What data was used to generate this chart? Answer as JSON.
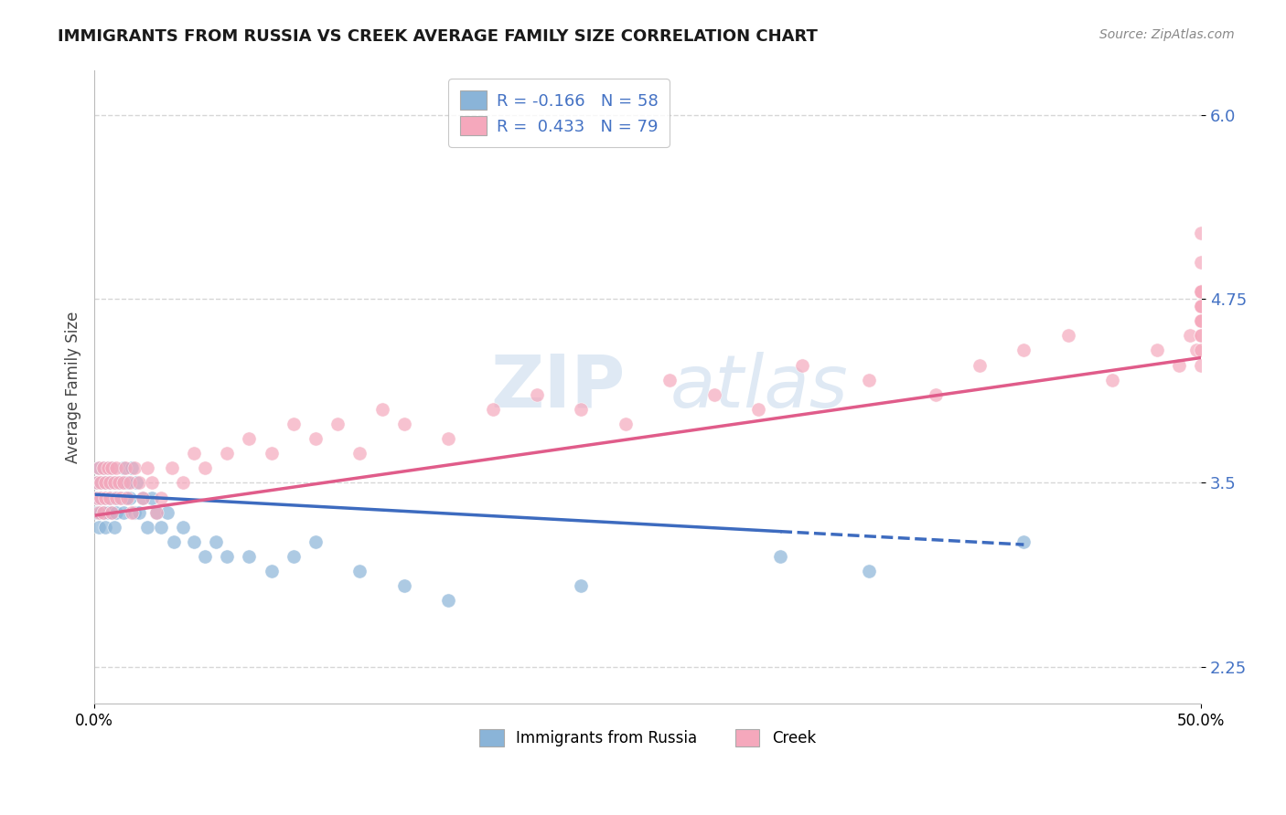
{
  "title": "IMMIGRANTS FROM RUSSIA VS CREEK AVERAGE FAMILY SIZE CORRELATION CHART",
  "source": "Source: ZipAtlas.com",
  "ylabel": "Average Family Size",
  "xlim": [
    0.0,
    0.5
  ],
  "ylim": [
    2.0,
    6.3
  ],
  "yticks": [
    2.25,
    3.5,
    4.75,
    6.0
  ],
  "xticks": [
    0.0,
    0.5
  ],
  "xticklabels": [
    "0.0%",
    "50.0%"
  ],
  "watermark_top": "ZIP",
  "watermark_bot": "atlas",
  "legend_line1": "R = -0.166   N = 58",
  "legend_line2": "R =  0.433   N = 79",
  "color_blue": "#8ab4d8",
  "color_pink": "#f5a8bc",
  "trend_blue": "#3d6bbf",
  "trend_pink": "#e05c8a",
  "tick_color": "#4472c4",
  "russia_x": [
    0.001,
    0.001,
    0.001,
    0.002,
    0.002,
    0.002,
    0.003,
    0.003,
    0.003,
    0.004,
    0.004,
    0.005,
    0.005,
    0.005,
    0.006,
    0.006,
    0.007,
    0.007,
    0.008,
    0.008,
    0.009,
    0.009,
    0.01,
    0.01,
    0.011,
    0.012,
    0.013,
    0.013,
    0.014,
    0.015,
    0.016,
    0.017,
    0.018,
    0.019,
    0.02,
    0.022,
    0.024,
    0.026,
    0.028,
    0.03,
    0.033,
    0.036,
    0.04,
    0.045,
    0.05,
    0.055,
    0.06,
    0.07,
    0.08,
    0.09,
    0.1,
    0.12,
    0.14,
    0.16,
    0.22,
    0.31,
    0.35,
    0.42
  ],
  "russia_y": [
    3.5,
    3.3,
    3.4,
    3.6,
    3.2,
    3.4,
    3.5,
    3.3,
    3.4,
    3.6,
    3.3,
    3.4,
    3.2,
    3.5,
    3.3,
    3.6,
    3.4,
    3.5,
    3.3,
    3.6,
    3.4,
    3.2,
    3.5,
    3.3,
    3.4,
    3.5,
    3.3,
    3.6,
    3.4,
    3.5,
    3.4,
    3.6,
    3.3,
    3.5,
    3.3,
    3.4,
    3.2,
    3.4,
    3.3,
    3.2,
    3.3,
    3.1,
    3.2,
    3.1,
    3.0,
    3.1,
    3.0,
    3.0,
    2.9,
    3.0,
    3.1,
    2.9,
    2.8,
    2.7,
    2.8,
    3.0,
    2.9,
    3.1
  ],
  "creek_x": [
    0.001,
    0.001,
    0.002,
    0.002,
    0.003,
    0.003,
    0.004,
    0.004,
    0.005,
    0.005,
    0.006,
    0.007,
    0.007,
    0.008,
    0.008,
    0.009,
    0.01,
    0.01,
    0.011,
    0.012,
    0.013,
    0.014,
    0.015,
    0.016,
    0.017,
    0.018,
    0.02,
    0.022,
    0.024,
    0.026,
    0.028,
    0.03,
    0.035,
    0.04,
    0.045,
    0.05,
    0.06,
    0.07,
    0.08,
    0.09,
    0.1,
    0.11,
    0.12,
    0.13,
    0.14,
    0.16,
    0.18,
    0.2,
    0.22,
    0.24,
    0.26,
    0.28,
    0.3,
    0.32,
    0.35,
    0.38,
    0.4,
    0.42,
    0.44,
    0.46,
    0.48,
    0.49,
    0.495,
    0.498,
    0.5,
    0.5,
    0.5,
    0.5,
    0.5,
    0.5,
    0.5,
    0.5,
    0.5,
    0.5,
    0.5,
    0.5,
    0.5,
    0.5,
    0.5
  ],
  "creek_y": [
    3.4,
    3.5,
    3.3,
    3.6,
    3.4,
    3.5,
    3.3,
    3.6,
    3.4,
    3.5,
    3.6,
    3.4,
    3.5,
    3.3,
    3.6,
    3.5,
    3.4,
    3.6,
    3.5,
    3.4,
    3.5,
    3.6,
    3.4,
    3.5,
    3.3,
    3.6,
    3.5,
    3.4,
    3.6,
    3.5,
    3.3,
    3.4,
    3.6,
    3.5,
    3.7,
    3.6,
    3.7,
    3.8,
    3.7,
    3.9,
    3.8,
    3.9,
    3.7,
    4.0,
    3.9,
    3.8,
    4.0,
    4.1,
    4.0,
    3.9,
    4.2,
    4.1,
    4.0,
    4.3,
    4.2,
    4.1,
    4.3,
    4.4,
    4.5,
    4.2,
    4.4,
    4.3,
    4.5,
    4.4,
    4.3,
    5.0,
    5.2,
    4.8,
    4.7,
    4.6,
    4.8,
    4.7,
    4.6,
    4.5,
    4.7,
    4.8,
    4.6,
    4.5,
    4.4
  ],
  "russia_trend_x": [
    0.001,
    0.42
  ],
  "russia_trend_y": [
    3.42,
    3.08
  ],
  "creek_trend_x": [
    0.001,
    0.5
  ],
  "creek_trend_y": [
    3.28,
    4.35
  ]
}
